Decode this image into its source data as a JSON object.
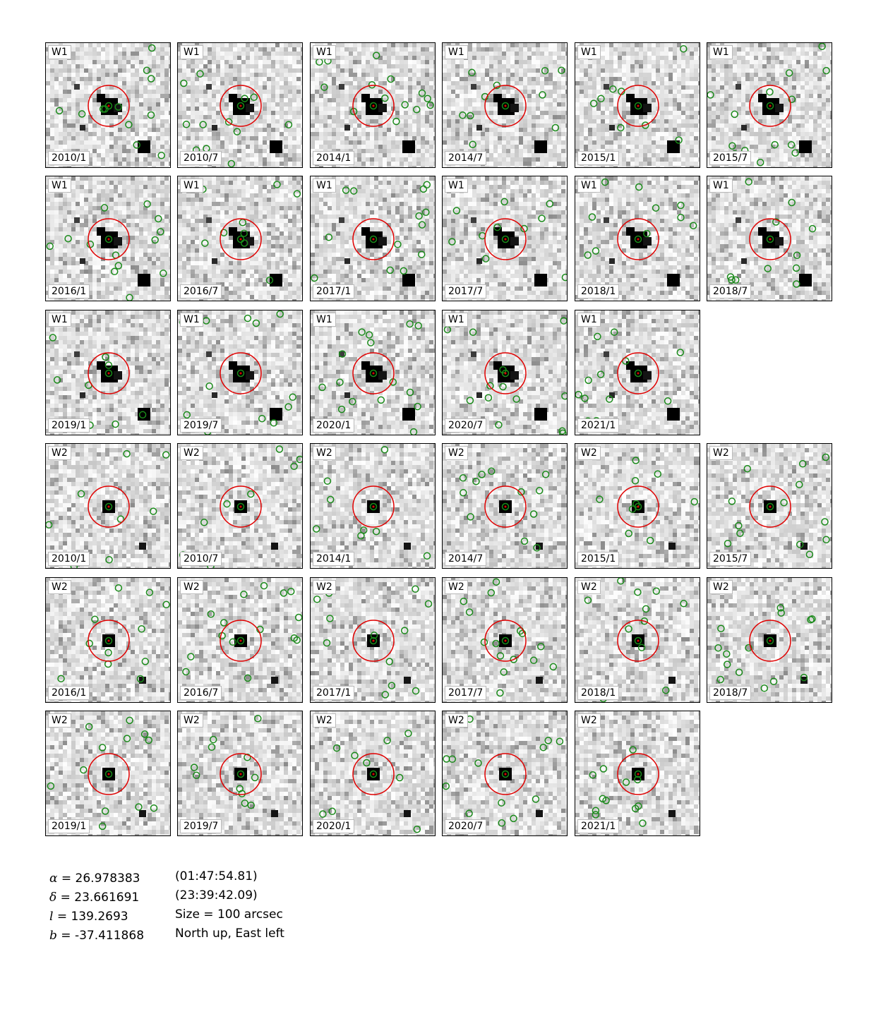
{
  "panels": [
    {
      "band": "W1",
      "epoch": "2010/1"
    },
    {
      "band": "W1",
      "epoch": "2010/7"
    },
    {
      "band": "W1",
      "epoch": "2014/1"
    },
    {
      "band": "W1",
      "epoch": "2014/7"
    },
    {
      "band": "W1",
      "epoch": "2015/1"
    },
    {
      "band": "W1",
      "epoch": "2015/7"
    },
    {
      "band": "W1",
      "epoch": "2016/1"
    },
    {
      "band": "W1",
      "epoch": "2016/7"
    },
    {
      "band": "W1",
      "epoch": "2017/1"
    },
    {
      "band": "W1",
      "epoch": "2017/7"
    },
    {
      "band": "W1",
      "epoch": "2018/1"
    },
    {
      "band": "W1",
      "epoch": "2018/7"
    },
    {
      "band": "W1",
      "epoch": "2019/1"
    },
    {
      "band": "W1",
      "epoch": "2019/7"
    },
    {
      "band": "W1",
      "epoch": "2020/1"
    },
    {
      "band": "W1",
      "epoch": "2020/7"
    },
    {
      "band": "W1",
      "epoch": "2021/1"
    },
    {
      "band": "W2",
      "epoch": "2010/1"
    },
    {
      "band": "W2",
      "epoch": "2010/7"
    },
    {
      "band": "W2",
      "epoch": "2014/1"
    },
    {
      "band": "W2",
      "epoch": "2014/7"
    },
    {
      "band": "W2",
      "epoch": "2015/1"
    },
    {
      "band": "W2",
      "epoch": "2015/7"
    },
    {
      "band": "W2",
      "epoch": "2016/1"
    },
    {
      "band": "W2",
      "epoch": "2016/7"
    },
    {
      "band": "W2",
      "epoch": "2017/1"
    },
    {
      "band": "W2",
      "epoch": "2017/7"
    },
    {
      "band": "W2",
      "epoch": "2018/1"
    },
    {
      "band": "W2",
      "epoch": "2018/7"
    },
    {
      "band": "W2",
      "epoch": "2019/1"
    },
    {
      "band": "W2",
      "epoch": "2019/7"
    },
    {
      "band": "W2",
      "epoch": "2020/1"
    },
    {
      "band": "W2",
      "epoch": "2020/7"
    },
    {
      "band": "W2",
      "epoch": "2021/1"
    }
  ],
  "coordinates": {
    "alpha_symbol": "α",
    "alpha_value": " = 26.978383",
    "delta_symbol": "δ",
    "delta_value": " = 23.661691",
    "l_symbol": "l",
    "l_value": " = 139.2693",
    "b_symbol": "b",
    "b_value": " = -37.411868",
    "ra_sexagesimal": "(01:47:54.81)",
    "dec_sexagesimal": "(23:39:42.09)",
    "size": "Size = 100 arcsec",
    "orientation": "North up, East left"
  },
  "colors": {
    "target_circle": "#e00000",
    "detection_markers": "#1a8a1a"
  }
}
